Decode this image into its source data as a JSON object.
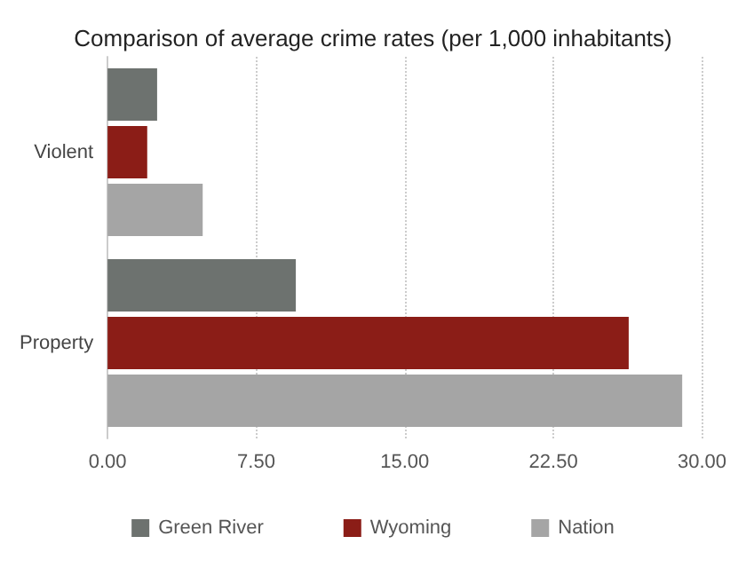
{
  "chart_data": {
    "type": "bar",
    "orientation": "horizontal",
    "title": "Comparison of average crime rates (per 1,000 inhabitants)",
    "categories": [
      "Violent",
      "Property"
    ],
    "series": [
      {
        "name": "Green River",
        "color": "#6d726f",
        "values": [
          2.5,
          9.5
        ]
      },
      {
        "name": "Wyoming",
        "color": "#8b1d17",
        "values": [
          2.0,
          26.3
        ]
      },
      {
        "name": "Nation",
        "color": "#a5a5a5",
        "values": [
          4.8,
          29.0
        ]
      }
    ],
    "xlim": [
      0,
      30
    ],
    "xticks": [
      {
        "value": 0,
        "label": "0.00"
      },
      {
        "value": 7.5,
        "label": "7.50"
      },
      {
        "value": 15,
        "label": "15.00"
      },
      {
        "value": 22.5,
        "label": "22.50"
      },
      {
        "value": 30,
        "label": "30.00"
      }
    ],
    "grid": "x",
    "legend": "bottom"
  }
}
